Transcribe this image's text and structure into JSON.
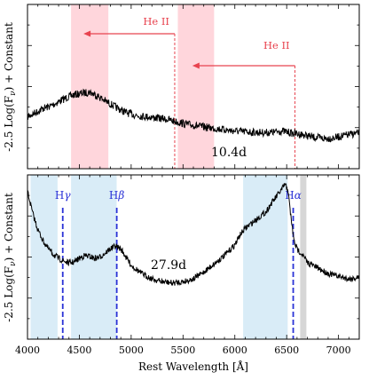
{
  "chart_data": {
    "type": "line",
    "xlabel": "Rest Wavelength [Å]",
    "xlim": [
      4000,
      7200
    ],
    "xticks": [
      4000,
      4500,
      5000,
      5500,
      6000,
      6500,
      7000
    ],
    "colors": {
      "spectrum": "#000000",
      "red_band": "#ffd6dc",
      "red_annot": "#e8434f",
      "blue_band": "#d9ecf7",
      "blue_line": "#2a32d6",
      "gray_band": "#d6d6d6"
    },
    "panels": [
      {
        "label": "10.4d",
        "ylabel": "-2.5 Log(F_ν) + Constant",
        "shaded_bands": [
          {
            "from": 4420,
            "to": 4780,
            "color": "red_band"
          },
          {
            "from": 5450,
            "to": 5800,
            "color": "red_band"
          }
        ],
        "annotations": [
          {
            "text": "He II",
            "marker_x": 5420,
            "arrow_to_x": 4540
          },
          {
            "text": "He II",
            "marker_x": 6580,
            "arrow_to_x": 5590
          }
        ],
        "spectrum": [
          [
            4000,
            4.1
          ],
          [
            4080,
            3.95
          ],
          [
            4150,
            3.8
          ],
          [
            4230,
            3.7
          ],
          [
            4300,
            3.55
          ],
          [
            4380,
            3.4
          ],
          [
            4450,
            3.3
          ],
          [
            4520,
            3.25
          ],
          [
            4600,
            3.2
          ],
          [
            4680,
            3.35
          ],
          [
            4760,
            3.55
          ],
          [
            4850,
            3.75
          ],
          [
            4950,
            3.95
          ],
          [
            5050,
            4.05
          ],
          [
            5150,
            4.1
          ],
          [
            5250,
            4.15
          ],
          [
            5350,
            4.2
          ],
          [
            5450,
            4.3
          ],
          [
            5550,
            4.38
          ],
          [
            5650,
            4.45
          ],
          [
            5750,
            4.5
          ],
          [
            5850,
            4.55
          ],
          [
            5950,
            4.6
          ],
          [
            6050,
            4.64
          ],
          [
            6150,
            4.66
          ],
          [
            6250,
            4.68
          ],
          [
            6350,
            4.68
          ],
          [
            6450,
            4.62
          ],
          [
            6550,
            4.7
          ],
          [
            6650,
            4.75
          ],
          [
            6750,
            4.85
          ],
          [
            6850,
            4.9
          ],
          [
            6950,
            4.88
          ],
          [
            7050,
            4.8
          ],
          [
            7150,
            4.72
          ],
          [
            7200,
            4.7
          ]
        ]
      },
      {
        "label": "27.9d",
        "ylabel": "-2.5 Log(F_ν) + Constant",
        "shaded_bands": [
          {
            "from": 4030,
            "to": 4290,
            "color": "blue_band"
          },
          {
            "from": 4420,
            "to": 4860,
            "color": "blue_band"
          },
          {
            "from": 6080,
            "to": 6510,
            "color": "blue_band"
          },
          {
            "from": 6630,
            "to": 6690,
            "color": "gray_band"
          }
        ],
        "lines": [
          {
            "name": "H",
            "sub": "γ",
            "x": 4340
          },
          {
            "name": "H",
            "sub": "β",
            "x": 4861
          },
          {
            "name": "H",
            "sub": "α",
            "x": 6563
          }
        ],
        "spectrum": [
          [
            4000,
            0.6
          ],
          [
            4050,
            1.4
          ],
          [
            4100,
            2.0
          ],
          [
            4150,
            2.4
          ],
          [
            4200,
            2.7
          ],
          [
            4250,
            2.9
          ],
          [
            4300,
            3.05
          ],
          [
            4350,
            3.15
          ],
          [
            4400,
            3.22
          ],
          [
            4450,
            3.18
          ],
          [
            4500,
            3.05
          ],
          [
            4550,
            2.95
          ],
          [
            4600,
            2.98
          ],
          [
            4650,
            3.05
          ],
          [
            4700,
            3.0
          ],
          [
            4750,
            2.85
          ],
          [
            4800,
            2.7
          ],
          [
            4850,
            2.6
          ],
          [
            4900,
            2.7
          ],
          [
            4950,
            3.0
          ],
          [
            5000,
            3.3
          ],
          [
            5100,
            3.6
          ],
          [
            5200,
            3.8
          ],
          [
            5300,
            3.9
          ],
          [
            5400,
            3.95
          ],
          [
            5500,
            3.9
          ],
          [
            5600,
            3.8
          ],
          [
            5700,
            3.55
          ],
          [
            5800,
            3.25
          ],
          [
            5900,
            2.95
          ],
          [
            6000,
            2.55
          ],
          [
            6050,
            2.2
          ],
          [
            6100,
            1.95
          ],
          [
            6200,
            1.65
          ],
          [
            6300,
            1.35
          ],
          [
            6350,
            1.05
          ],
          [
            6400,
            0.8
          ],
          [
            6450,
            0.55
          ],
          [
            6480,
            0.35
          ],
          [
            6510,
            0.5
          ],
          [
            6540,
            1.5
          ],
          [
            6570,
            2.4
          ],
          [
            6600,
            2.7
          ],
          [
            6650,
            2.9
          ],
          [
            6700,
            3.2
          ],
          [
            6800,
            3.4
          ],
          [
            6900,
            3.6
          ],
          [
            7000,
            3.7
          ],
          [
            7100,
            3.8
          ],
          [
            7200,
            3.75
          ]
        ]
      }
    ]
  }
}
